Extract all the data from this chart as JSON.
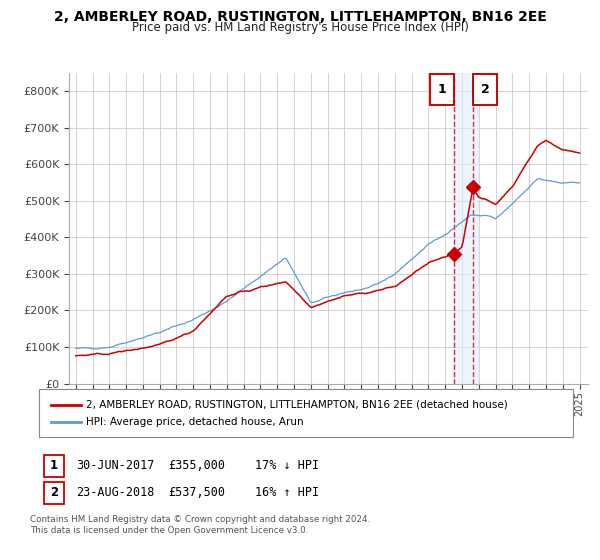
{
  "title": "2, AMBERLEY ROAD, RUSTINGTON, LITTLEHAMPTON, BN16 2EE",
  "subtitle": "Price paid vs. HM Land Registry's House Price Index (HPI)",
  "legend_entries": [
    "2, AMBERLEY ROAD, RUSTINGTON, LITTLEHAMPTON, BN16 2EE (detached house)",
    "HPI: Average price, detached house, Arun"
  ],
  "annotation1_label": "1",
  "annotation1_date": "30-JUN-2017",
  "annotation1_price": "£355,000",
  "annotation1_hpi": "17% ↓ HPI",
  "annotation2_label": "2",
  "annotation2_date": "23-AUG-2018",
  "annotation2_price": "£537,500",
  "annotation2_hpi": "16% ↑ HPI",
  "footnote1": "Contains HM Land Registry data © Crown copyright and database right 2024.",
  "footnote2": "This data is licensed under the Open Government Licence v3.0.",
  "red_color": "#cc0000",
  "blue_color": "#6699cc",
  "background_color": "#ffffff",
  "grid_color": "#cccccc",
  "shade_color": "#ddeeff",
  "ylim": [
    0,
    850000
  ],
  "yticks": [
    0,
    100000,
    200000,
    300000,
    400000,
    500000,
    600000,
    700000,
    800000
  ],
  "ytick_labels": [
    "£0",
    "£100K",
    "£200K",
    "£300K",
    "£400K",
    "£500K",
    "£600K",
    "£700K",
    "£800K"
  ],
  "sale1_year": 2017.5,
  "sale1_value": 355000,
  "sale2_year": 2018.65,
  "sale2_value": 537500,
  "xlim_left": 1994.6,
  "xlim_right": 2025.5,
  "hpi_keypoints_x": [
    1995,
    1997,
    2000,
    2002,
    2004,
    2007.5,
    2009,
    2011,
    2012.5,
    2014,
    2016,
    2017.5,
    2018.5,
    2019.5,
    2020,
    2021,
    2022.5,
    2024,
    2025
  ],
  "hpi_keypoints_y": [
    95000,
    100000,
    140000,
    175000,
    225000,
    345000,
    220000,
    250000,
    260000,
    300000,
    380000,
    425000,
    460000,
    460000,
    450000,
    490000,
    560000,
    550000,
    550000
  ],
  "red_keypoints_x": [
    1995,
    1997,
    2000,
    2002,
    2004,
    2007.5,
    2009,
    2011,
    2012.5,
    2014,
    2016,
    2017.0,
    2017.5,
    2018.0,
    2018.65,
    2019,
    2020,
    2021,
    2022.5,
    2023,
    2024,
    2025
  ],
  "red_keypoints_y": [
    75000,
    82000,
    105000,
    145000,
    240000,
    280000,
    210000,
    240000,
    250000,
    265000,
    330000,
    345000,
    355000,
    375000,
    537500,
    510000,
    490000,
    540000,
    650000,
    665000,
    640000,
    630000
  ]
}
